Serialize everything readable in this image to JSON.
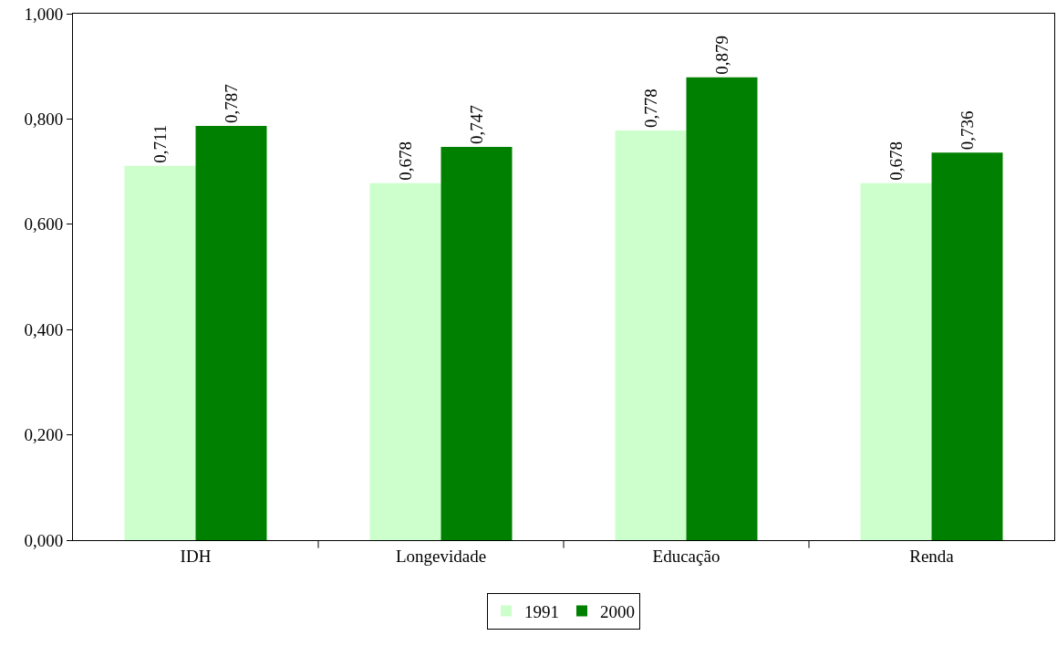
{
  "chart_data": {
    "type": "bar",
    "categories": [
      "IDH",
      "Longevidade",
      "Educação",
      "Renda"
    ],
    "series": [
      {
        "name": "1991",
        "color": "#ccffcc",
        "values": [
          0.711,
          0.678,
          0.778,
          0.678
        ],
        "value_labels": [
          "0,711",
          "0,678",
          "0,778",
          "0,678"
        ]
      },
      {
        "name": "2000",
        "color": "#008000",
        "values": [
          0.787,
          0.747,
          0.879,
          0.736
        ],
        "value_labels": [
          "0,787",
          "0,747",
          "0,879",
          "0,736"
        ]
      }
    ],
    "ylim": [
      0,
      1
    ],
    "yticks": [
      {
        "value": 0,
        "label": "0,000"
      },
      {
        "value": 0.2,
        "label": "0,200"
      },
      {
        "value": 0.4,
        "label": "0,400"
      },
      {
        "value": 0.6,
        "label": "0,600"
      },
      {
        "value": 0.8,
        "label": "0,800"
      },
      {
        "value": 1,
        "label": "1,000"
      }
    ],
    "grid": false,
    "legend": "bottom"
  }
}
